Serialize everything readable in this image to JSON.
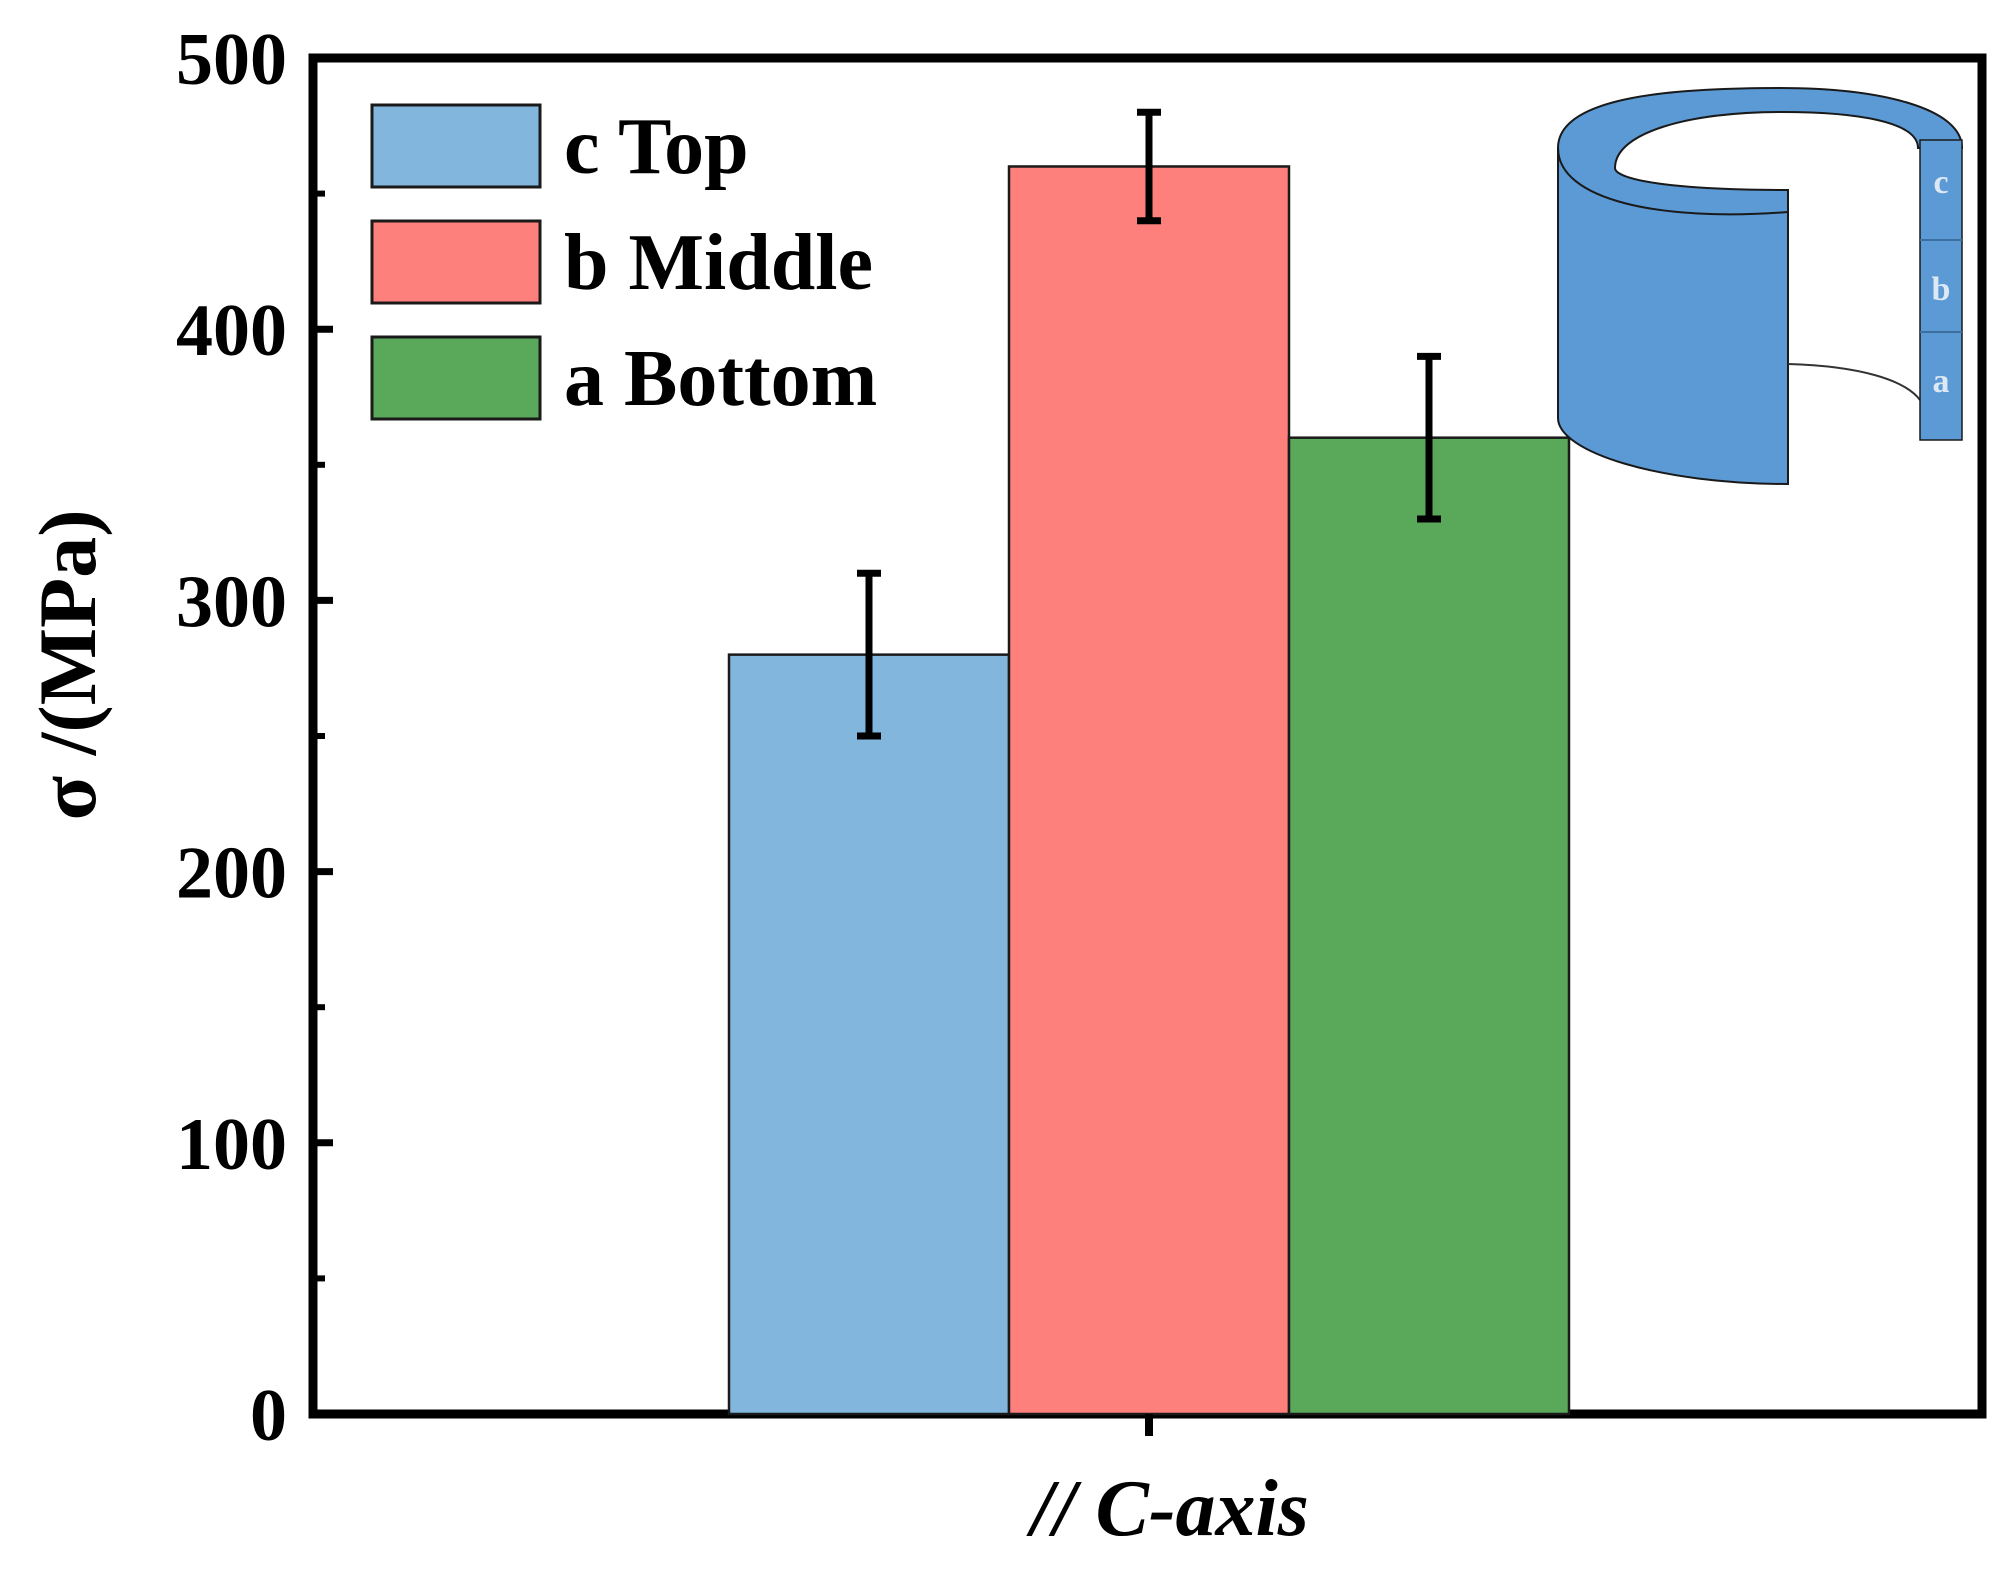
{
  "chart_data": {
    "type": "bar",
    "title": "",
    "categories": [
      "// C-axis"
    ],
    "xlabel": "// C-axis",
    "ylabel": "σ /(MPa)",
    "ylim": [
      0,
      500
    ],
    "yticks": [
      "0",
      "100",
      "200",
      "300",
      "400",
      "500"
    ],
    "grid": false,
    "legend_position": "top-left",
    "series": [
      {
        "name": "c Top",
        "value": 280,
        "error": 30,
        "color": "#82b6dd"
      },
      {
        "name": "b Middle",
        "value": 460,
        "error": 20,
        "color": "#fe807c"
      },
      {
        "name": "a Bottom",
        "value": 360,
        "error": 30,
        "color": "#5aa85a"
      }
    ],
    "inset": {
      "description_labels": [
        "c",
        "b",
        "a"
      ],
      "color": "#5b9ad5"
    }
  }
}
